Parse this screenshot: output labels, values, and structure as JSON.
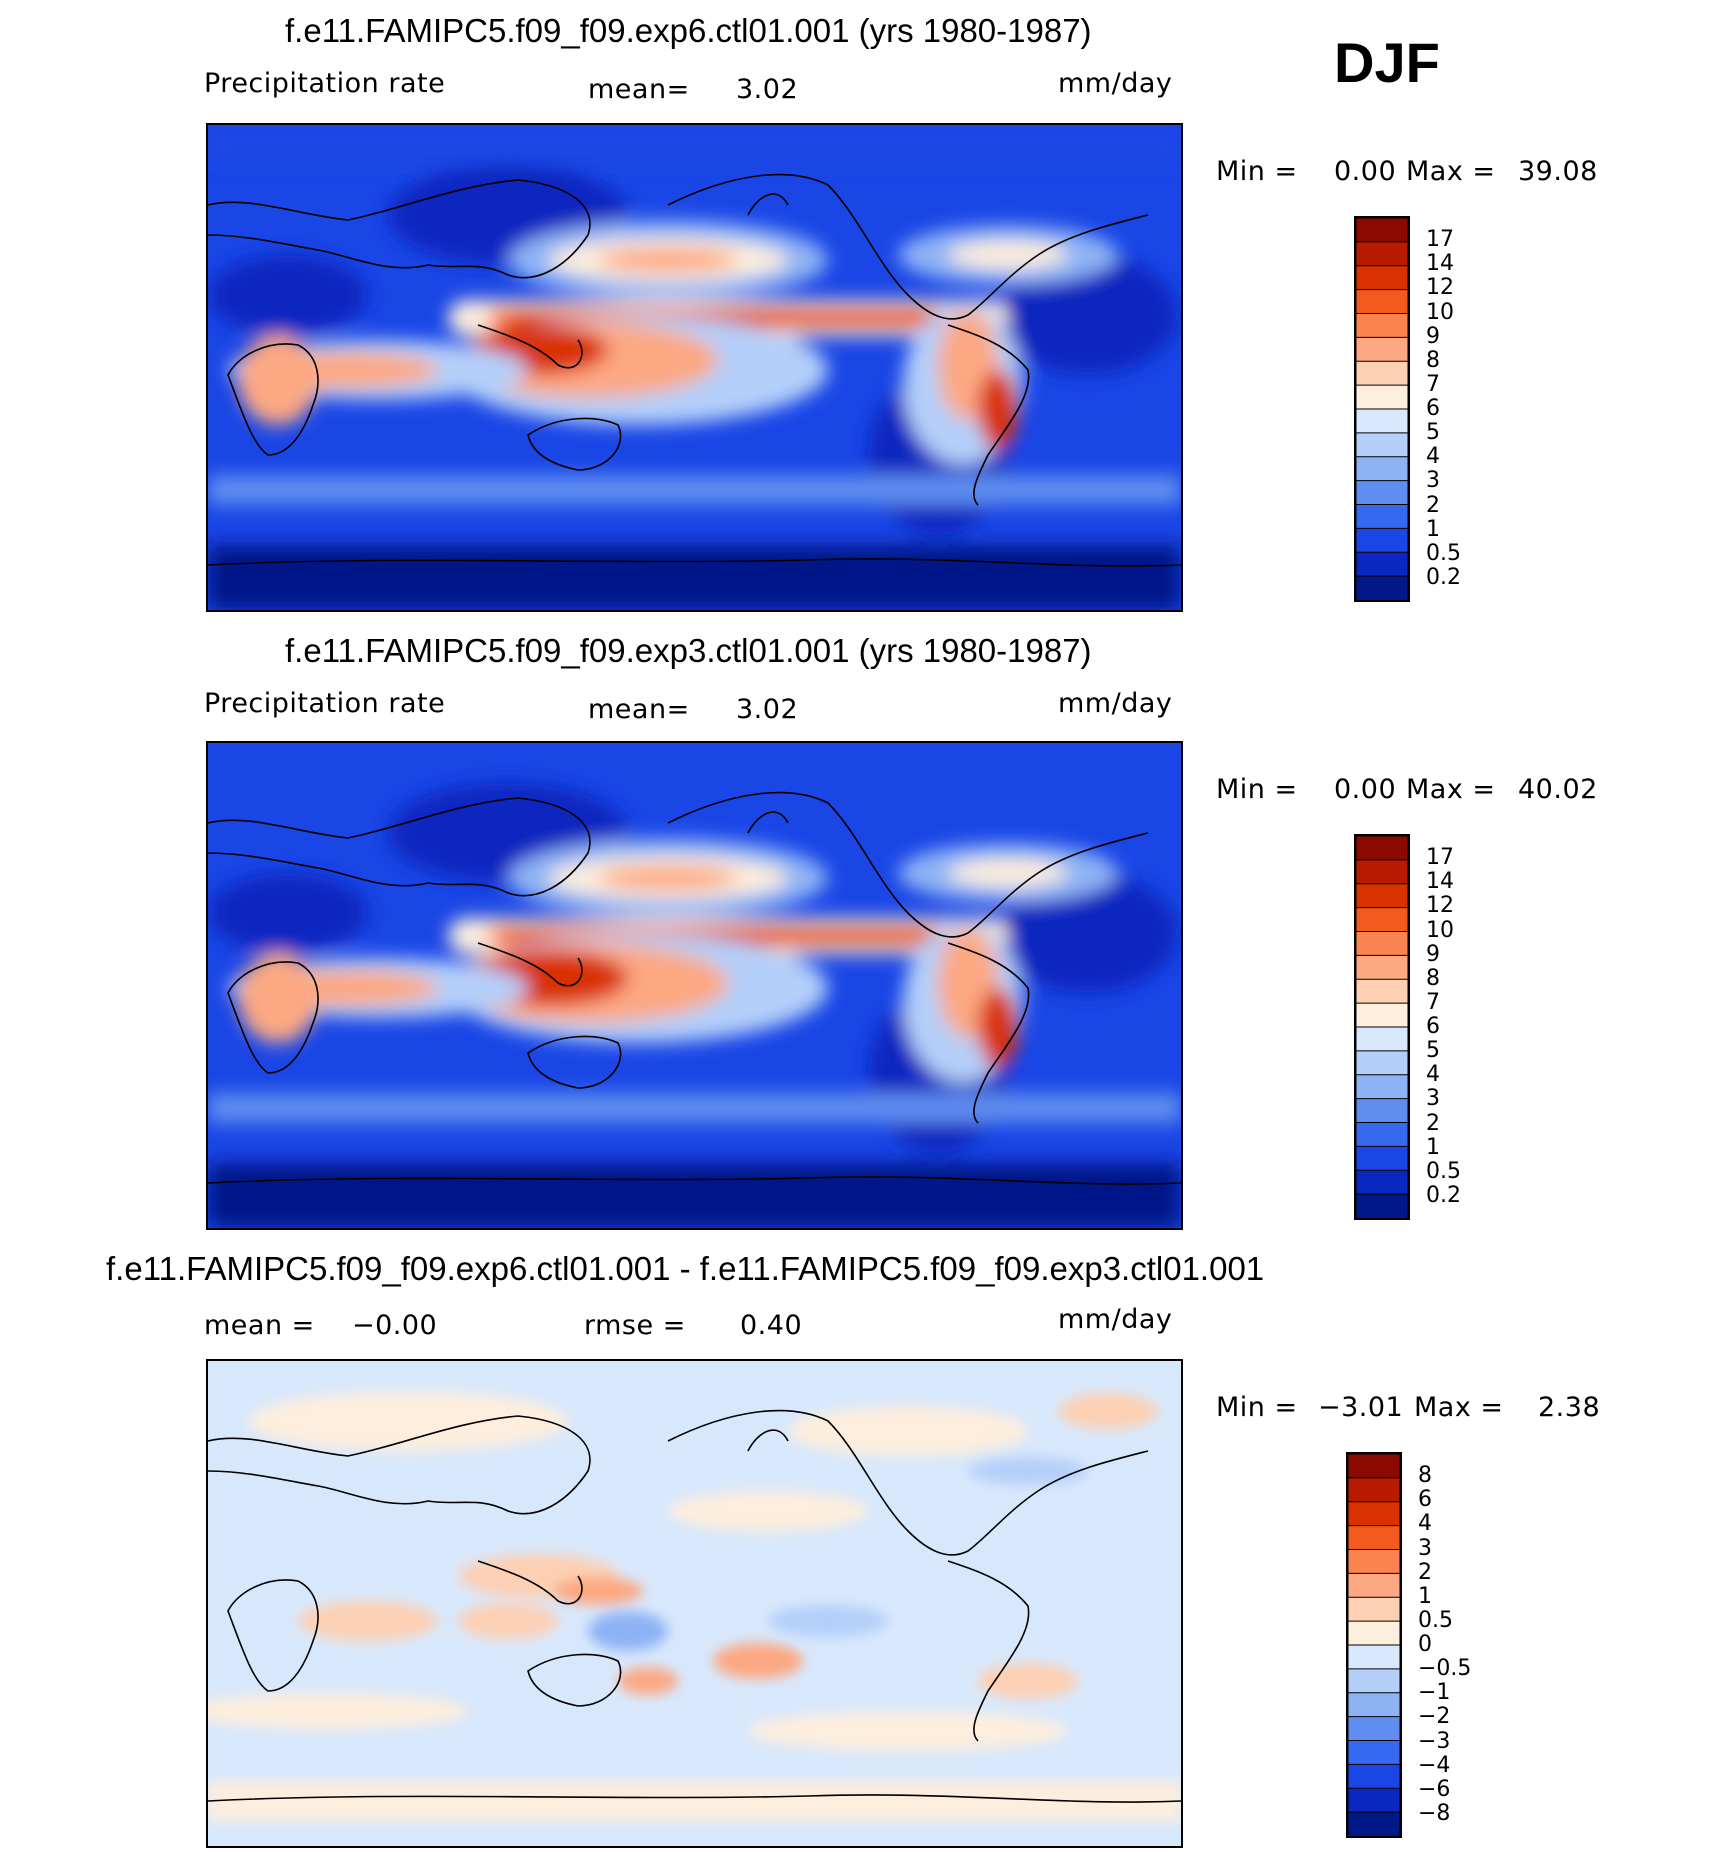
{
  "season": "DJF",
  "panels": [
    {
      "title": "f.e11.FAMIPC5.f09_f09.exp6.ctl01.001 (yrs 1980-1987)",
      "variable": "Precipitation rate",
      "stat1_label": "mean=",
      "stat1_value": "3.02",
      "units": "mm/day",
      "min_label": "Min  =",
      "min_value": "0.00",
      "max_label": "Max  =",
      "max_value": "39.08"
    },
    {
      "title": "f.e11.FAMIPC5.f09_f09.exp3.ctl01.001 (yrs 1980-1987)",
      "variable": "Precipitation rate",
      "stat1_label": "mean=",
      "stat1_value": "3.02",
      "units": "mm/day",
      "min_label": "Min  =",
      "min_value": "0.00",
      "max_label": "Max  =",
      "max_value": "40.02"
    },
    {
      "title": "f.e11.FAMIPC5.f09_f09.exp6.ctl01.001 - f.e11.FAMIPC5.f09_f09.exp3.ctl01.001",
      "stat1_label": "mean  =",
      "stat1_value": "−0.00",
      "stat2_label": "rmse  =",
      "stat2_value": "0.40",
      "units": "mm/day",
      "min_label": "Min  =",
      "min_value": "−3.01",
      "max_label": "Max  =",
      "max_value": "2.38"
    }
  ],
  "colorbars": {
    "precip": {
      "labels": [
        "17",
        "14",
        "12",
        "10",
        "9",
        "8",
        "7",
        "6",
        "5",
        "4",
        "3",
        "2",
        "1",
        "0.5",
        "0.2"
      ],
      "colors": [
        "#8b0a00",
        "#b81c00",
        "#d93100",
        "#f25a1e",
        "#fb8350",
        "#fca882",
        "#fdd0b4",
        "#fdeedd",
        "#d8e8fc",
        "#b4cff9",
        "#8eb3f5",
        "#5f8ef0",
        "#356af0",
        "#1a46e6",
        "#0828c0",
        "#001888"
      ]
    },
    "diff": {
      "labels": [
        "8",
        "6",
        "4",
        "3",
        "2",
        "1",
        "0.5",
        "0",
        "−0.5",
        "−1",
        "−2",
        "−3",
        "−4",
        "−6",
        "−8"
      ],
      "colors": [
        "#8b0a00",
        "#b81c00",
        "#d93100",
        "#f25a1e",
        "#fb8350",
        "#fca882",
        "#fdd0b4",
        "#fdeedd",
        "#d8e8fc",
        "#b4cff9",
        "#8eb3f5",
        "#5f8ef0",
        "#356af0",
        "#1a46e6",
        "#0828c0",
        "#001888"
      ]
    }
  }
}
